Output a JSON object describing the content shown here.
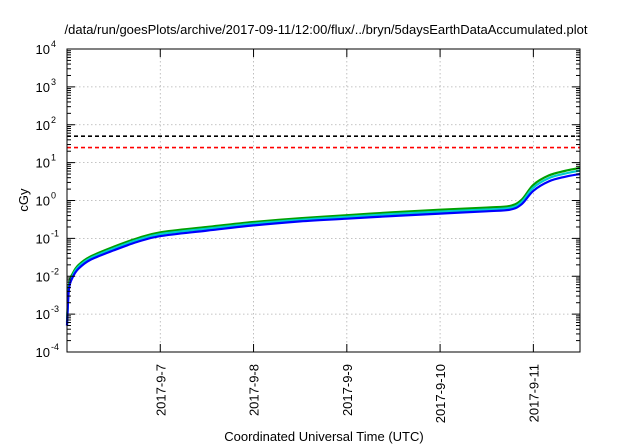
{
  "chart_data": {
    "type": "line",
    "title": "/data/run/goesPlots/archive/2017-09-11/12:00/flux/../bryn/5daysEarthDataAccumulated.plot",
    "xlabel": "Coordinated Universal Time (UTC)",
    "ylabel": "cGy",
    "yscale": "log",
    "ylim": [
      0.0001,
      10000
    ],
    "xlim": [
      "2017-09-06 00:00",
      "2017-09-11 12:00"
    ],
    "grid": true,
    "x_ticks": [
      "2017-9-7",
      "2017-9-8",
      "2017-9-9",
      "2017-9-10",
      "2017-9-11"
    ],
    "y_ticks": [
      {
        "value": 0.0001,
        "base": "10",
        "exp": "-4"
      },
      {
        "value": 0.001,
        "base": "10",
        "exp": "-3"
      },
      {
        "value": 0.01,
        "base": "10",
        "exp": "-2"
      },
      {
        "value": 0.1,
        "base": "10",
        "exp": "-1"
      },
      {
        "value": 1,
        "base": "10",
        "exp": "0"
      },
      {
        "value": 10,
        "base": "10",
        "exp": "1"
      },
      {
        "value": 100,
        "base": "10",
        "exp": "2"
      },
      {
        "value": 1000,
        "base": "10",
        "exp": "3"
      },
      {
        "value": 10000,
        "base": "10",
        "exp": "4"
      }
    ],
    "thresholds": [
      {
        "value": 50,
        "color": "#000000",
        "style": "dashed"
      },
      {
        "value": 25,
        "color": "#ff0000",
        "style": "dashed"
      }
    ],
    "series": [
      {
        "color": "#00a000",
        "points": [
          [
            "2017-09-06 00:00",
            0.0006
          ],
          [
            "2017-09-06 00:30",
            0.006
          ],
          [
            "2017-09-06 01:30",
            0.012
          ],
          [
            "2017-09-06 03:00",
            0.02
          ],
          [
            "2017-09-06 06:00",
            0.033
          ],
          [
            "2017-09-06 12:00",
            0.06
          ],
          [
            "2017-09-06 18:00",
            0.1
          ],
          [
            "2017-09-07 00:00",
            0.145
          ],
          [
            "2017-09-07 12:00",
            0.2
          ],
          [
            "2017-09-08 00:00",
            0.27
          ],
          [
            "2017-09-08 12:00",
            0.34
          ],
          [
            "2017-09-09 00:00",
            0.41
          ],
          [
            "2017-09-09 12:00",
            0.49
          ],
          [
            "2017-09-10 00:00",
            0.57
          ],
          [
            "2017-09-10 12:00",
            0.65
          ],
          [
            "2017-09-10 18:00",
            0.72
          ],
          [
            "2017-09-10 21:00",
            1.05
          ],
          [
            "2017-09-11 00:00",
            2.6
          ],
          [
            "2017-09-11 04:00",
            4.6
          ],
          [
            "2017-09-11 08:00",
            6.0
          ],
          [
            "2017-09-11 12:00",
            7.3
          ]
        ]
      },
      {
        "color": "#00cccc",
        "points": [
          [
            "2017-09-06 00:00",
            0.0005
          ],
          [
            "2017-09-06 00:30",
            0.005
          ],
          [
            "2017-09-06 01:30",
            0.0105
          ],
          [
            "2017-09-06 03:00",
            0.018
          ],
          [
            "2017-09-06 06:00",
            0.03
          ],
          [
            "2017-09-06 12:00",
            0.054
          ],
          [
            "2017-09-06 18:00",
            0.09
          ],
          [
            "2017-09-07 00:00",
            0.13
          ],
          [
            "2017-09-07 12:00",
            0.18
          ],
          [
            "2017-09-08 00:00",
            0.245
          ],
          [
            "2017-09-08 12:00",
            0.31
          ],
          [
            "2017-09-09 00:00",
            0.37
          ],
          [
            "2017-09-09 12:00",
            0.44
          ],
          [
            "2017-09-10 00:00",
            0.51
          ],
          [
            "2017-09-10 12:00",
            0.58
          ],
          [
            "2017-09-10 18:00",
            0.64
          ],
          [
            "2017-09-10 21:00",
            0.92
          ],
          [
            "2017-09-11 00:00",
            2.2
          ],
          [
            "2017-09-11 04:00",
            3.9
          ],
          [
            "2017-09-11 08:00",
            5.1
          ],
          [
            "2017-09-11 12:00",
            6.2
          ]
        ]
      },
      {
        "color": "#0000ff",
        "points": [
          [
            "2017-09-06 00:00",
            0.0005
          ],
          [
            "2017-09-06 00:30",
            0.0045
          ],
          [
            "2017-09-06 01:30",
            0.0095
          ],
          [
            "2017-09-06 03:00",
            0.016
          ],
          [
            "2017-09-06 06:00",
            0.027
          ],
          [
            "2017-09-06 12:00",
            0.048
          ],
          [
            "2017-09-06 18:00",
            0.08
          ],
          [
            "2017-09-07 00:00",
            0.115
          ],
          [
            "2017-09-07 12:00",
            0.16
          ],
          [
            "2017-09-08 00:00",
            0.22
          ],
          [
            "2017-09-08 12:00",
            0.28
          ],
          [
            "2017-09-09 00:00",
            0.33
          ],
          [
            "2017-09-09 12:00",
            0.39
          ],
          [
            "2017-09-10 00:00",
            0.45
          ],
          [
            "2017-09-10 12:00",
            0.52
          ],
          [
            "2017-09-10 18:00",
            0.57
          ],
          [
            "2017-09-10 21:00",
            0.8
          ],
          [
            "2017-09-11 00:00",
            1.8
          ],
          [
            "2017-09-11 04:00",
            3.2
          ],
          [
            "2017-09-11 08:00",
            4.2
          ],
          [
            "2017-09-11 12:00",
            5.0
          ]
        ]
      }
    ]
  }
}
